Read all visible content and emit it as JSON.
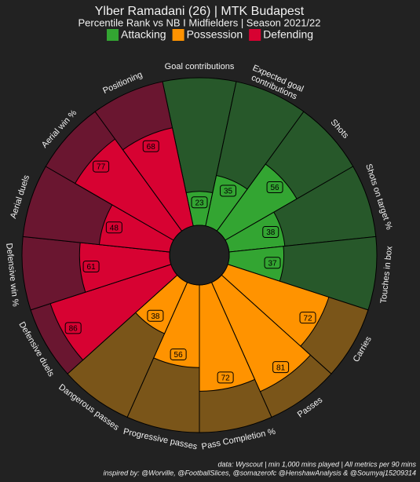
{
  "chart_data": {
    "type": "pizza",
    "title": "Ylber Ramadani (26) | MTK Budapest",
    "subtitle": "Percentile Rank vs NB I Midfielders | Season 2021/22",
    "series": [
      {
        "name": "Attacking",
        "color": "#33a532",
        "background": "#27582a",
        "categories": [
          "Goal contributions",
          "Expected goal contributions",
          "Shots",
          "Shots on target %",
          "Touches in box"
        ],
        "values": [
          23,
          35,
          56,
          38,
          37
        ]
      },
      {
        "name": "Possession",
        "color": "#ff9300",
        "background": "#7a5519",
        "categories": [
          "Carries",
          "Passes",
          "Pass Completion %",
          "Progressive passes",
          "Dangerous passes"
        ],
        "values": [
          72,
          81,
          72,
          56,
          38
        ]
      },
      {
        "name": "Defending",
        "color": "#d70232",
        "background": "#6a1630",
        "categories": [
          "Defensive duels",
          "Defensive win %",
          "Aerial duels",
          "Aerial win %",
          "Positioning"
        ],
        "values": [
          86,
          61,
          48,
          77,
          68
        ]
      }
    ],
    "notes": [
      "data: Wyscout | min 1,000 mins played | All metrics per 90 mins",
      "inspired by: @Worville, @FootballSlices, @somazerofc @HenshawAnalysis & @Soumyaj15209314"
    ]
  }
}
